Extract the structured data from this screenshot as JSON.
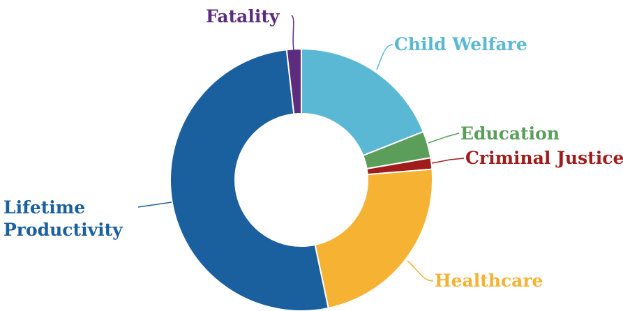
{
  "chart_data": {
    "type": "donut",
    "categories": [
      "Child Welfare",
      "Education",
      "Criminal Justice",
      "Healthcare",
      "Lifetime Productivity",
      "Fatality"
    ],
    "values": [
      19,
      3.3,
      1.4,
      23,
      51.5,
      1.8
    ],
    "colors": [
      "#5bb8d4",
      "#5a9e5a",
      "#a01c1c",
      "#f6b233",
      "#1a5f9e",
      "#5c2d7e"
    ]
  }
}
